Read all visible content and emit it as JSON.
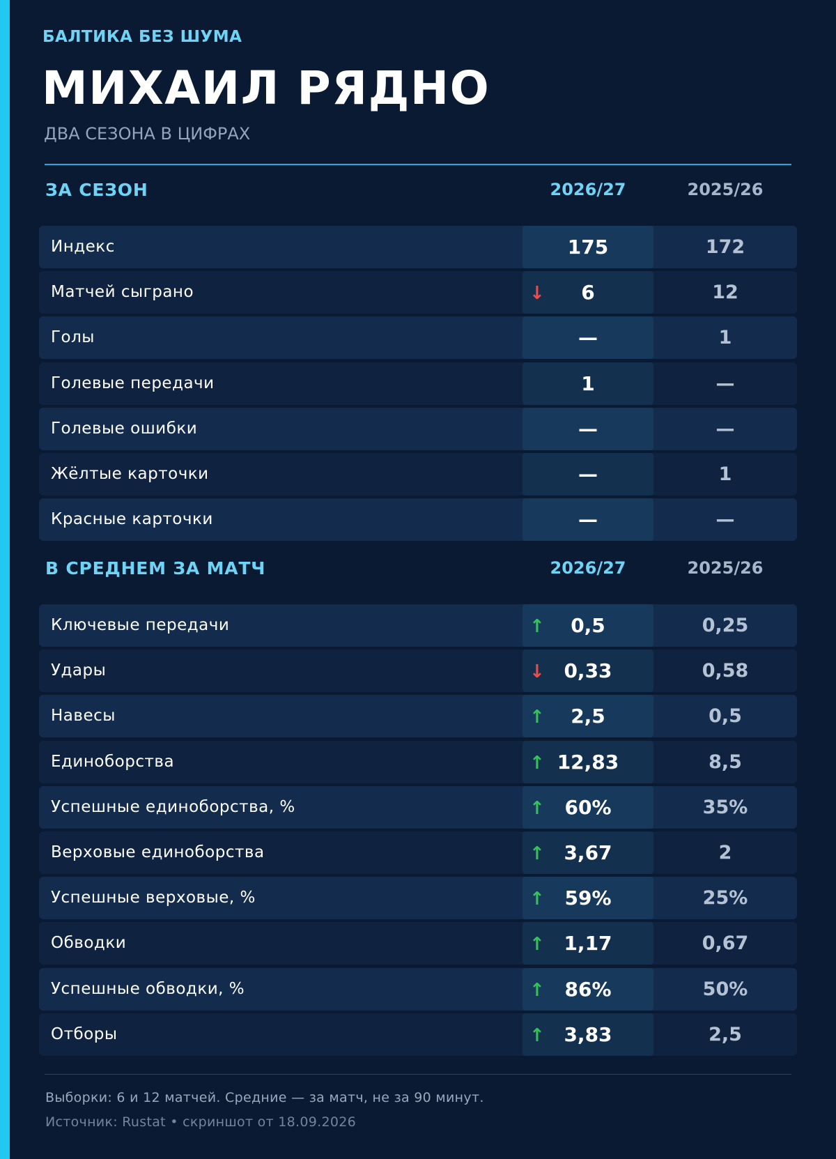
{
  "header": {
    "kicker": "БАЛТИКА БЕЗ ШУМА",
    "title": "МИХАИЛ РЯДНО",
    "subtitle": "ДВА СЕЗОНА В ЦИФРАХ"
  },
  "colors": {
    "accent": "#22c8f0",
    "up": "#35c25a",
    "down": "#ef4b4b"
  },
  "season_section": {
    "title": "ЗА СЕЗОН",
    "col_current": "2026/27",
    "col_previous": "2025/26",
    "rows": [
      {
        "label": "Индекс",
        "current": "175",
        "previous": "172",
        "trend": ""
      },
      {
        "label": "Матчей сыграно",
        "current": "6",
        "previous": "12",
        "trend": "down"
      },
      {
        "label": "Голы",
        "current": "—",
        "previous": "1",
        "trend": ""
      },
      {
        "label": "Голевые передачи",
        "current": "1",
        "previous": "—",
        "trend": ""
      },
      {
        "label": "Голевые ошибки",
        "current": "—",
        "previous": "—",
        "trend": ""
      },
      {
        "label": "Жёлтые карточки",
        "current": "—",
        "previous": "1",
        "trend": ""
      },
      {
        "label": "Красные карточки",
        "current": "—",
        "previous": "—",
        "trend": ""
      }
    ]
  },
  "per_match_section": {
    "title": "В СРЕДНЕМ ЗА МАТЧ",
    "col_current": "2026/27",
    "col_previous": "2025/26",
    "rows": [
      {
        "label": "Ключевые передачи",
        "current": "0,5",
        "previous": "0,25",
        "trend": "up"
      },
      {
        "label": "Удары",
        "current": "0,33",
        "previous": "0,58",
        "trend": "down"
      },
      {
        "label": "Навесы",
        "current": "2,5",
        "previous": "0,5",
        "trend": "up"
      },
      {
        "label": "Единоборства",
        "current": "12,83",
        "previous": "8,5",
        "trend": "up"
      },
      {
        "label": "Успешные единоборства, %",
        "current": "60%",
        "previous": "35%",
        "trend": "up"
      },
      {
        "label": "Верховые единоборства",
        "current": "3,67",
        "previous": "2",
        "trend": "up"
      },
      {
        "label": "Успешные верховые, %",
        "current": "59%",
        "previous": "25%",
        "trend": "up"
      },
      {
        "label": "Обводки",
        "current": "1,17",
        "previous": "0,67",
        "trend": "up"
      },
      {
        "label": "Успешные обводки, %",
        "current": "86%",
        "previous": "50%",
        "trend": "up"
      },
      {
        "label": "Отборы",
        "current": "3,83",
        "previous": "2,5",
        "trend": "up"
      }
    ]
  },
  "footer": {
    "note": "Выборки: 6 и 12 матчей. Средние — за матч, не за 90 минут.",
    "source": "Источник: Rustat • скриншот от 18.09.2026"
  }
}
